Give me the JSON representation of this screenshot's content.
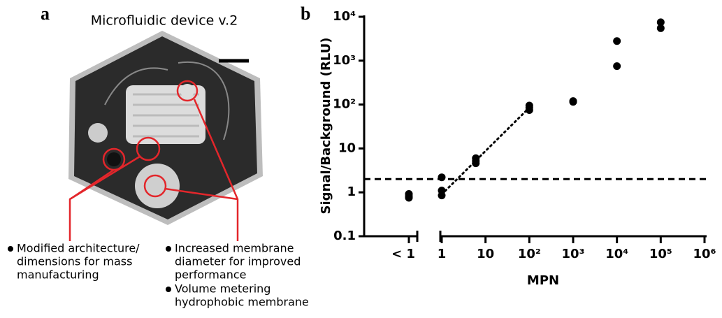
{
  "panel_a": {
    "label": "a",
    "title": "Microfluidic device v.2",
    "notes": [
      {
        "lines": [
          "Modified architecture/",
          "dimensions for mass",
          "manufacturing"
        ]
      },
      {
        "lines": [
          "Increased membrane",
          "diameter for improved",
          "performance"
        ]
      },
      {
        "lines": [
          "Volume metering",
          "hydrophobic membrane"
        ]
      }
    ]
  },
  "chart_data": {
    "type": "scatter",
    "panel_label": "b",
    "y_label": "Signal/Background (RLU)",
    "x_label": "MPN",
    "log_x": true,
    "log_y": true,
    "color": "#000000",
    "below_range": {
      "category": "< 1",
      "values": [
        0.92,
        0.82,
        0.75
      ]
    },
    "x": [
      1,
      1,
      1,
      6,
      6,
      6,
      100,
      100,
      100,
      1000,
      1000,
      10000,
      10000,
      100000,
      100000
    ],
    "values": [
      2.2,
      1.1,
      0.85,
      6,
      5.2,
      4.6,
      95,
      85,
      75,
      120,
      115,
      2800,
      750,
      7500,
      5500
    ],
    "xlim": [
      1,
      1000000
    ],
    "xticks": [
      1,
      10,
      {
        "value": 100,
        "label": "10²"
      },
      {
        "value": 1000,
        "label": "10³"
      },
      {
        "value": 10000,
        "label": "10⁴"
      },
      {
        "value": 100000,
        "label": "10⁵"
      },
      {
        "value": 1000000,
        "label": "10⁶"
      }
    ],
    "ylim": [
      0.1,
      10000
    ],
    "yticks": [
      0.1,
      1,
      10,
      {
        "value": 100,
        "label": "10²"
      },
      {
        "value": 1000,
        "label": "10³"
      },
      {
        "value": 10000,
        "label": "10⁴"
      }
    ],
    "threshold": 2,
    "fit_line": {
      "x": [
        1,
        100
      ],
      "values": [
        0.9,
        85
      ]
    }
  }
}
